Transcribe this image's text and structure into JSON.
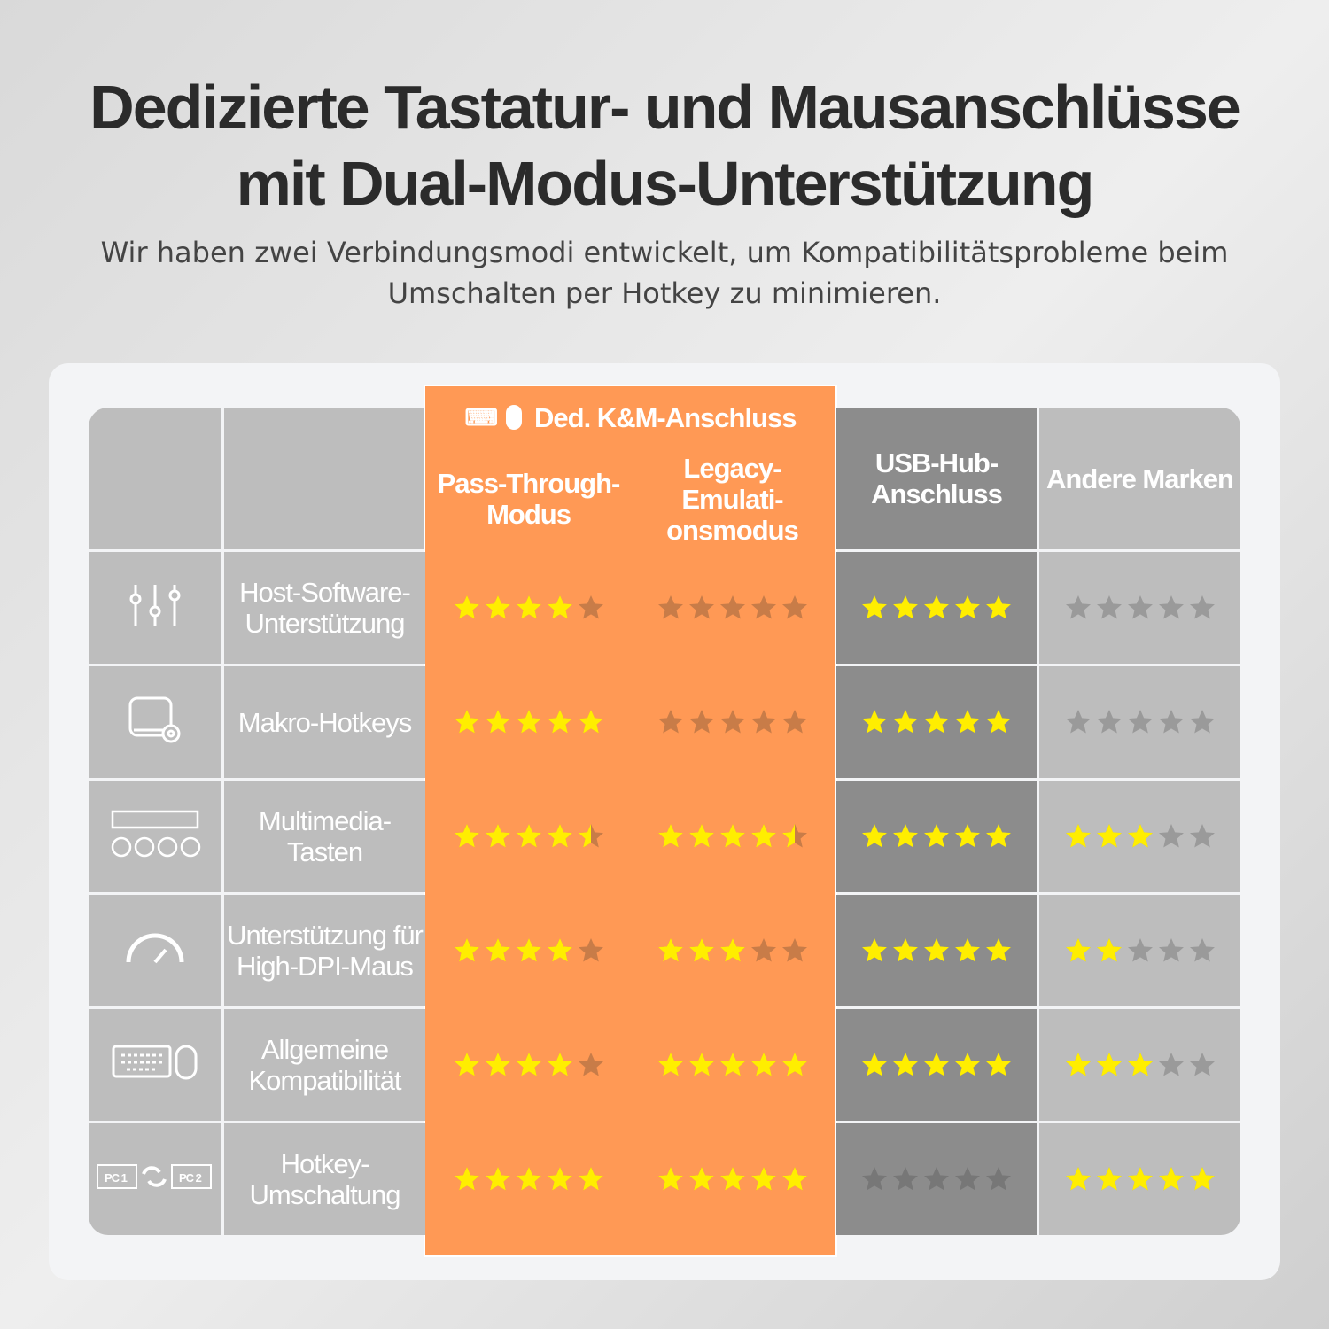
{
  "header": {
    "title_line1": "Dedizierte Tastatur- und Mausanschlüsse",
    "title_line2": "mit Dual-Modus-Unterstützung",
    "subtitle_line1": "Wir haben zwei Verbindungsmodi entwickelt, um Kompatibilitätsprobleme beim",
    "subtitle_line2": "Umschalten per Hotkey zu minimieren."
  },
  "table": {
    "group_header": {
      "label": "Ded. K&M-Anschluss",
      "icons": [
        "keyboard-icon",
        "mouse-icon"
      ]
    },
    "columns": [
      "Pass-Through-Modus",
      "Legacy-Emulati-onsmodus",
      "USB-Hub-Anschluss",
      "Andere Marken"
    ],
    "rows": [
      {
        "icon": "sliders-icon",
        "label": "Host-Software-Unterstützung",
        "ratings": [
          4,
          0,
          5,
          0
        ]
      },
      {
        "icon": "macro-device-icon",
        "label": "Makro-Hotkeys",
        "ratings": [
          5,
          0,
          5,
          0
        ]
      },
      {
        "icon": "media-keys-icon",
        "label": "Multimedia-Tasten",
        "ratings": [
          4.5,
          4.5,
          5,
          3
        ]
      },
      {
        "icon": "gauge-icon",
        "label": "Unterstützung für High-DPI-Maus",
        "ratings": [
          4,
          3,
          5,
          2
        ]
      },
      {
        "icon": "keyboard-mouse-icon",
        "label": "Allgemeine Kompatibilität",
        "ratings": [
          4,
          5,
          5,
          3
        ]
      },
      {
        "icon": "pc-switch-icon",
        "label": "Hotkey-Umschaltung",
        "ratings": [
          5,
          5,
          0,
          5
        ]
      }
    ],
    "max_rating": 5
  },
  "colors": {
    "orange": "#ff9955",
    "gray": "#bdbdbd",
    "dark_gray": "#8c8c8c",
    "star": "#ffee00"
  }
}
